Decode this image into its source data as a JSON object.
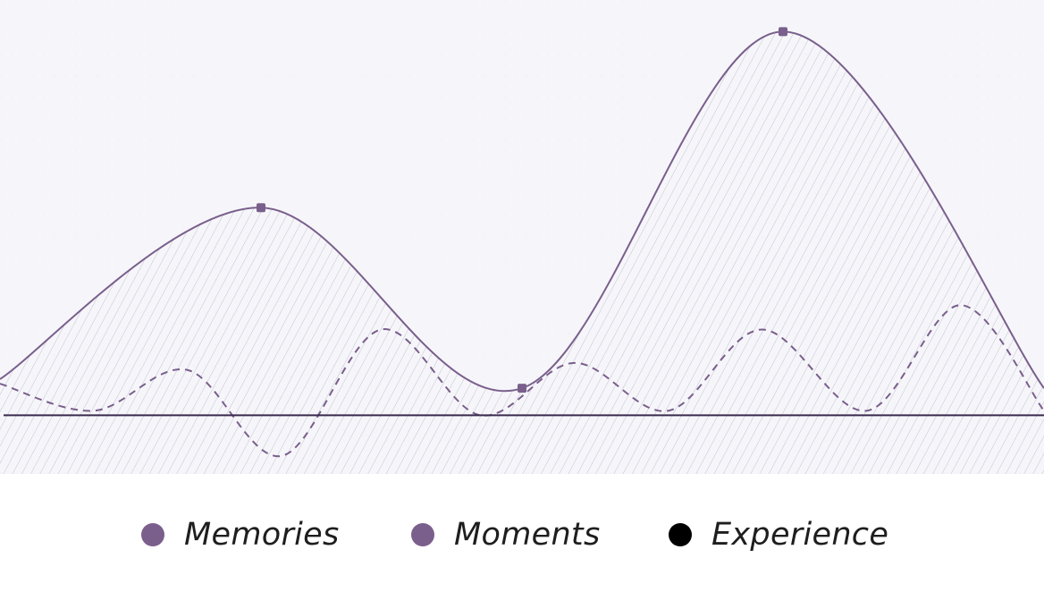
{
  "chart_data": {
    "type": "area",
    "title": "",
    "xlabel": "",
    "ylabel": "",
    "grid": true,
    "legend_position": "bottom-center",
    "background": "#f6f6fa",
    "colors": {
      "memories": "#7a5f8c",
      "moments": "#7a5f8c",
      "experience": "#000000",
      "baseline": "#3a2a4e",
      "hatch": "#bfbfcf"
    },
    "series": [
      {
        "name": "Memories",
        "key": "memories",
        "style": "solid-area",
        "x": [
          0,
          0.25,
          0.5,
          0.75,
          1.0
        ],
        "y": [
          0.4,
          2.3,
          0.3,
          4.25,
          0.3
        ],
        "marker_points": [
          1,
          2,
          3
        ]
      },
      {
        "name": "Moments",
        "key": "moments",
        "style": "dashed",
        "x": [
          0,
          0.09,
          0.18,
          0.27,
          0.365,
          0.46,
          0.55,
          0.64,
          0.73,
          0.83,
          0.92,
          1.0
        ],
        "y": [
          0.35,
          0.05,
          0.5,
          -0.45,
          0.95,
          0.0,
          0.58,
          0.05,
          0.95,
          0.05,
          1.22,
          0.05
        ]
      },
      {
        "name": "Experience",
        "key": "experience",
        "style": "baseline",
        "x": [
          0,
          1.0
        ],
        "y": [
          0,
          0
        ]
      }
    ],
    "xlim": [
      0,
      1
    ],
    "ylim": [
      -0.65,
      4.6
    ]
  },
  "legend": {
    "items": [
      {
        "label": "Memories",
        "color": "#7a5f8c"
      },
      {
        "label": "Moments",
        "color": "#7a5f8c"
      },
      {
        "label": "Experience",
        "color": "#000000"
      }
    ]
  }
}
